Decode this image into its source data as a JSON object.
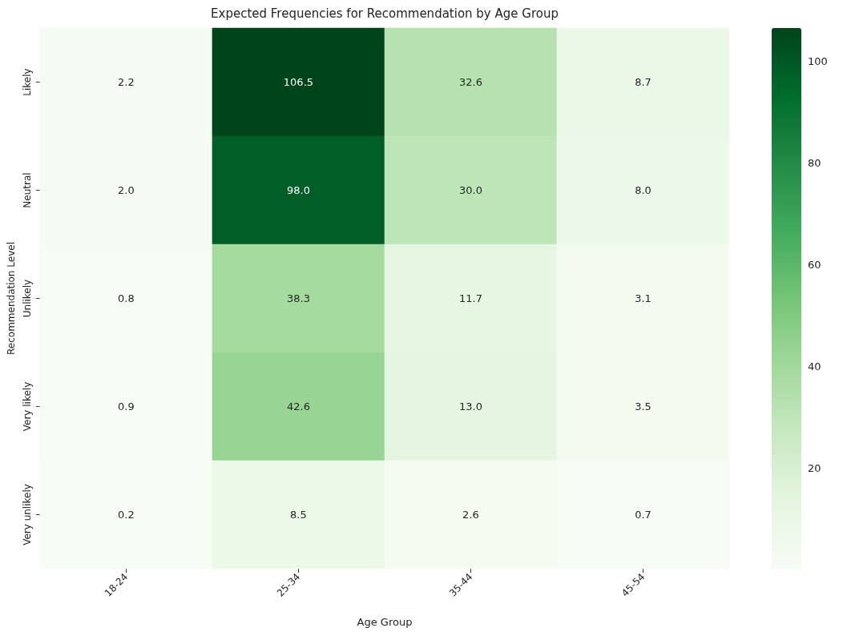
{
  "chart_data": {
    "type": "heatmap",
    "title": "Expected Frequencies for Recommendation by Age Group",
    "xlabel": "Age Group",
    "ylabel": "Recommendation Level",
    "categories": [
      "18-24",
      "25-34",
      "35-44",
      "45-54"
    ],
    "y_categories": [
      "Likely",
      "Neutral",
      "Unlikely",
      "Very likely",
      "Very unlikely"
    ],
    "cells": [
      [
        2.2,
        106.5,
        32.6,
        8.7
      ],
      [
        2.0,
        98.0,
        30.0,
        8.0
      ],
      [
        0.8,
        38.3,
        11.7,
        3.1
      ],
      [
        0.9,
        42.6,
        13.0,
        3.5
      ],
      [
        0.2,
        8.5,
        2.6,
        0.7
      ]
    ],
    "cell_labels": [
      [
        "2.2",
        "106.5",
        "32.6",
        "8.7"
      ],
      [
        "2.0",
        "98.0",
        "30.0",
        "8.0"
      ],
      [
        "0.8",
        "38.3",
        "11.7",
        "3.1"
      ],
      [
        "0.9",
        "42.6",
        "13.0",
        "3.5"
      ],
      [
        "0.2",
        "8.5",
        "2.6",
        "0.7"
      ]
    ],
    "clim": [
      0.2,
      106.5
    ],
    "cticks": [
      20,
      40,
      60,
      80,
      100
    ]
  }
}
